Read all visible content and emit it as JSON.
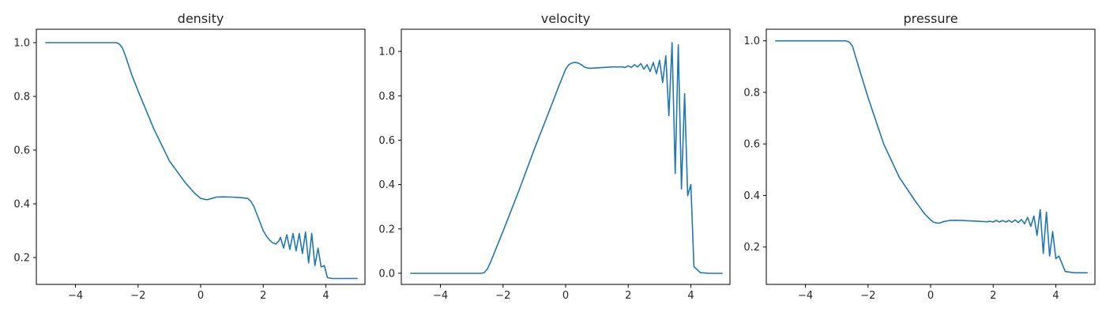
{
  "figure": {
    "line_color": "#1f77b4"
  },
  "chart_data": [
    {
      "type": "line",
      "title": "density",
      "xlim": [
        -5.25,
        5.25
      ],
      "ylim": [
        0.1,
        1.05
      ],
      "x_ticks": [
        -4,
        -2,
        0,
        2,
        4
      ],
      "x_tick_labels": [
        "−4",
        "−2",
        "0",
        "2",
        "4"
      ],
      "y_ticks": [
        0.2,
        0.4,
        0.6,
        0.8,
        1.0
      ],
      "y_tick_labels": [
        "0.2",
        "0.4",
        "0.6",
        "0.8",
        "1.0"
      ],
      "series": [
        {
          "x": [
            -4.95,
            -4.5,
            -4.0,
            -3.5,
            -3.0,
            -2.7,
            -2.6,
            -2.5,
            -2.4,
            -2.2,
            -2.0,
            -1.5,
            -1.0,
            -0.5,
            -0.2,
            0.0,
            0.2,
            0.35,
            0.5,
            0.7,
            1.0,
            1.3,
            1.5,
            1.6,
            1.7,
            1.8,
            1.9,
            2.0,
            2.1,
            2.2,
            2.3,
            2.4,
            2.5,
            2.55,
            2.65,
            2.75,
            2.85,
            2.95,
            3.05,
            3.15,
            3.25,
            3.35,
            3.45,
            3.55,
            3.65,
            3.75,
            3.85,
            3.95,
            4.05,
            4.2,
            4.5,
            5.0
          ],
          "y": [
            1.0,
            1.0,
            1.0,
            1.0,
            1.0,
            1.0,
            0.995,
            0.98,
            0.95,
            0.88,
            0.82,
            0.68,
            0.56,
            0.48,
            0.44,
            0.42,
            0.415,
            0.42,
            0.425,
            0.426,
            0.425,
            0.423,
            0.42,
            0.41,
            0.39,
            0.36,
            0.33,
            0.3,
            0.28,
            0.265,
            0.255,
            0.25,
            0.262,
            0.275,
            0.235,
            0.285,
            0.23,
            0.29,
            0.225,
            0.29,
            0.215,
            0.295,
            0.18,
            0.29,
            0.17,
            0.235,
            0.165,
            0.17,
            0.125,
            0.122,
            0.122,
            0.122
          ]
        }
      ]
    },
    {
      "type": "line",
      "title": "velocity",
      "xlim": [
        -5.25,
        5.25
      ],
      "ylim": [
        -0.05,
        1.1
      ],
      "x_ticks": [
        -4,
        -2,
        0,
        2,
        4
      ],
      "x_tick_labels": [
        "−4",
        "−2",
        "0",
        "2",
        "4"
      ],
      "y_ticks": [
        0.0,
        0.2,
        0.4,
        0.6,
        0.8,
        1.0
      ],
      "y_tick_labels": [
        "0.0",
        "0.2",
        "0.4",
        "0.6",
        "0.8",
        "1.0"
      ],
      "series": [
        {
          "x": [
            -4.95,
            -4.0,
            -3.0,
            -2.7,
            -2.6,
            -2.5,
            -2.4,
            -2.2,
            -2.0,
            -1.5,
            -1.0,
            -0.5,
            -0.2,
            0.0,
            0.1,
            0.2,
            0.3,
            0.4,
            0.5,
            0.6,
            0.7,
            0.8,
            1.0,
            1.5,
            1.8,
            1.9,
            2.0,
            2.1,
            2.2,
            2.3,
            2.4,
            2.5,
            2.6,
            2.7,
            2.8,
            2.9,
            3.0,
            3.1,
            3.2,
            3.3,
            3.4,
            3.5,
            3.6,
            3.7,
            3.8,
            3.9,
            4.0,
            4.1,
            4.3,
            4.6,
            5.0
          ],
          "y": [
            0.0,
            0.0,
            0.0,
            0.0,
            0.003,
            0.02,
            0.05,
            0.12,
            0.19,
            0.37,
            0.56,
            0.74,
            0.85,
            0.92,
            0.94,
            0.948,
            0.95,
            0.948,
            0.94,
            0.93,
            0.925,
            0.924,
            0.926,
            0.93,
            0.93,
            0.928,
            0.935,
            0.928,
            0.94,
            0.93,
            0.945,
            0.92,
            0.94,
            0.91,
            0.95,
            0.9,
            0.96,
            0.86,
            0.98,
            0.71,
            1.04,
            0.45,
            1.03,
            0.38,
            0.81,
            0.35,
            0.4,
            0.03,
            0.003,
            0.0,
            0.0
          ]
        }
      ]
    },
    {
      "type": "line",
      "title": "pressure",
      "xlim": [
        -5.25,
        5.25
      ],
      "ylim": [
        0.055,
        1.045
      ],
      "x_ticks": [
        -4,
        -2,
        0,
        2,
        4
      ],
      "x_tick_labels": [
        "−4",
        "−2",
        "0",
        "2",
        "4"
      ],
      "y_ticks": [
        0.2,
        0.4,
        0.6,
        0.8,
        1.0
      ],
      "y_tick_labels": [
        "0.2",
        "0.4",
        "0.6",
        "0.8",
        "1.0"
      ],
      "series": [
        {
          "x": [
            -4.95,
            -4.5,
            -4.0,
            -3.5,
            -3.0,
            -2.7,
            -2.6,
            -2.5,
            -2.4,
            -2.2,
            -2.0,
            -1.5,
            -1.0,
            -0.5,
            -0.2,
            0.0,
            0.1,
            0.2,
            0.3,
            0.4,
            0.6,
            0.8,
            1.0,
            1.5,
            1.8,
            1.9,
            2.0,
            2.1,
            2.2,
            2.3,
            2.4,
            2.5,
            2.6,
            2.7,
            2.8,
            2.9,
            3.0,
            3.1,
            3.2,
            3.3,
            3.4,
            3.5,
            3.6,
            3.7,
            3.8,
            3.9,
            4.0,
            4.1,
            4.3,
            4.6,
            5.0
          ],
          "y": [
            1.0,
            1.0,
            1.0,
            1.0,
            1.0,
            1.0,
            0.995,
            0.98,
            0.94,
            0.86,
            0.78,
            0.6,
            0.47,
            0.38,
            0.33,
            0.305,
            0.296,
            0.293,
            0.293,
            0.298,
            0.303,
            0.304,
            0.303,
            0.3,
            0.298,
            0.3,
            0.297,
            0.303,
            0.297,
            0.303,
            0.297,
            0.303,
            0.296,
            0.305,
            0.295,
            0.307,
            0.29,
            0.315,
            0.28,
            0.32,
            0.245,
            0.345,
            0.175,
            0.335,
            0.165,
            0.26,
            0.155,
            0.165,
            0.105,
            0.1,
            0.1
          ]
        }
      ]
    }
  ]
}
